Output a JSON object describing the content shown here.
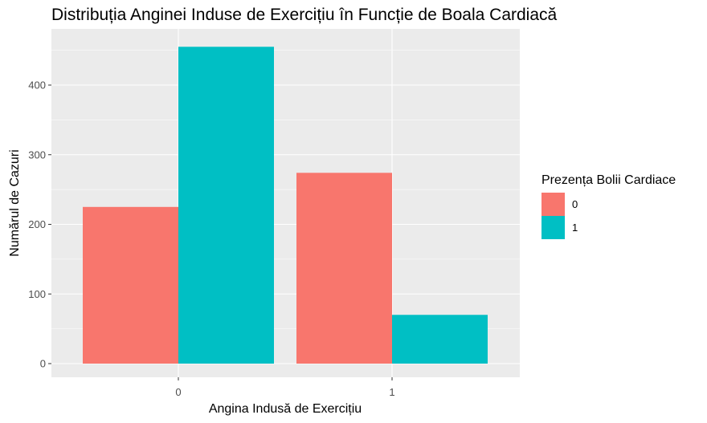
{
  "chart_data": {
    "type": "bar",
    "title": "Distribuția Anginei Induse de Exercițiu în Funcție de Boala Cardiacă",
    "xlabel": "Angina Indusă de Exercițiu",
    "ylabel": "Numărul de Cazuri",
    "categories": [
      "0",
      "1"
    ],
    "series": [
      {
        "name": "0",
        "color": "#F8766D",
        "values": [
          225,
          274
        ]
      },
      {
        "name": "1",
        "color": "#00BFC4",
        "values": [
          455,
          70
        ]
      }
    ],
    "yticks": [
      0,
      100,
      200,
      300,
      400
    ],
    "ylim": [
      0,
      480
    ],
    "grid": true,
    "legend": {
      "title": "Prezența Bolii Cardiace",
      "position": "right"
    },
    "panel_color": "#EBEBEB"
  }
}
